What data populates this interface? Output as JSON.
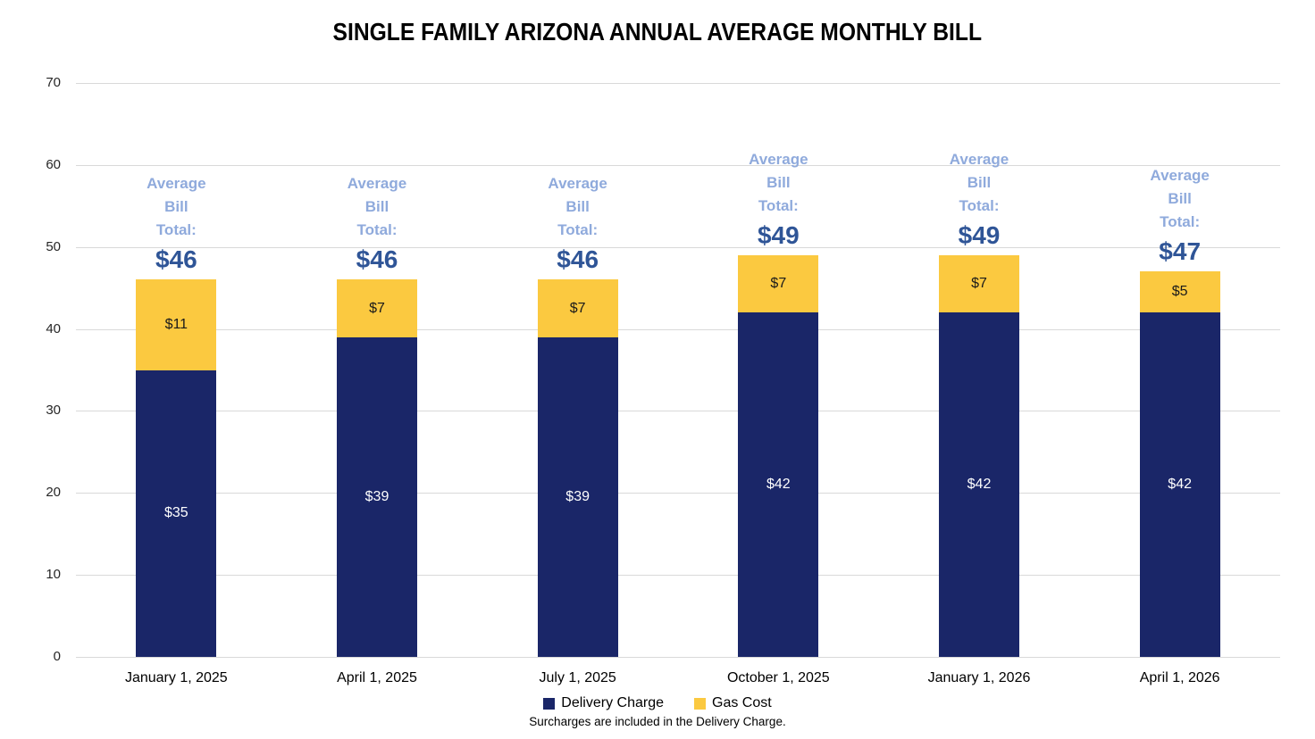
{
  "chart_data": {
    "type": "bar",
    "stacked": true,
    "title": "SINGLE FAMILY ARIZONA ANNUAL AVERAGE MONTHLY BILL",
    "categories": [
      "January 1, 2025",
      "April 1, 2025",
      "July 1, 2025",
      "October 1, 2025",
      "January 1, 2026",
      "April 1, 2026"
    ],
    "series": [
      {
        "name": "Delivery Charge",
        "color": "#1A2668",
        "values": [
          35,
          39,
          39,
          42,
          42,
          42
        ],
        "data_labels": [
          "$35",
          "$39",
          "$39",
          "$42",
          "$42",
          "$42"
        ]
      },
      {
        "name": "Gas Cost",
        "color": "#FBC940",
        "values": [
          11,
          7,
          7,
          7,
          7,
          5
        ],
        "data_labels": [
          "$11",
          "$7",
          "$7",
          "$7",
          "$7",
          "$5"
        ]
      }
    ],
    "totals": {
      "heading_lines": [
        "Average",
        "Bill",
        "Total:"
      ],
      "values": [
        46,
        46,
        46,
        49,
        49,
        47
      ],
      "labels": [
        "$46",
        "$46",
        "$46",
        "$49",
        "$49",
        "$47"
      ]
    },
    "y_axis": {
      "min": 0,
      "max": 70,
      "step": 10,
      "tick_labels": [
        "0",
        "10",
        "20",
        "30",
        "40",
        "50",
        "60",
        "70"
      ]
    },
    "grid": "horizontal",
    "legend": {
      "position": "bottom",
      "items": [
        {
          "label": "Delivery Charge",
          "color": "#1A2668"
        },
        {
          "label": "Gas Cost",
          "color": "#FBC940"
        }
      ]
    },
    "footnote": "Surcharges are included in the Delivery Charge."
  },
  "colors": {
    "background": "#FFFFFF",
    "title_text": "#000000",
    "axis_text": "#262626",
    "gridline": "#D9D9D9",
    "annotation_heading": "#8FAADC",
    "annotation_total": "#2F5597",
    "delivery_label_text": "#FFFFFF",
    "gas_label_text": "#1A1A1A"
  }
}
